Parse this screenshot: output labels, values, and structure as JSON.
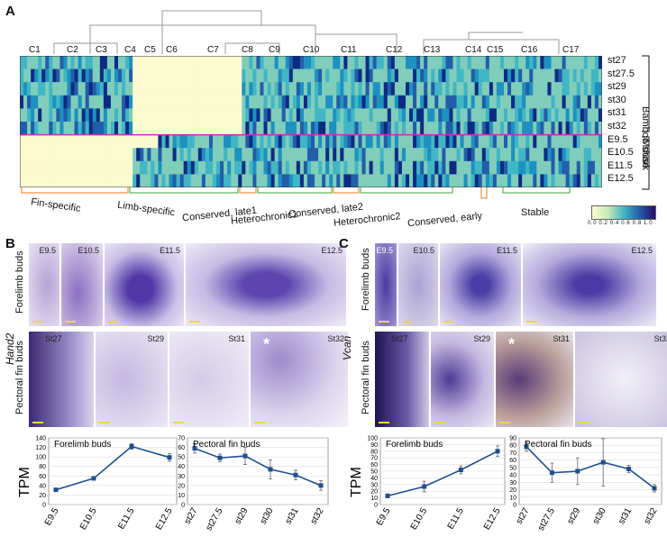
{
  "panel_a": {
    "letter": "A",
    "clusters": [
      "C1",
      "C2",
      "C3",
      "C4",
      "C5",
      "C6",
      "C7",
      "C8",
      "C9",
      "C10",
      "C11",
      "C12",
      "C13",
      "C14",
      "C15",
      "C16",
      "C17"
    ],
    "shark_stages": [
      "st27",
      "st27.5",
      "st29",
      "st30",
      "st31",
      "st32"
    ],
    "mouse_stages": [
      "E9.5",
      "E10.5",
      "E11.5",
      "E12.5"
    ],
    "species_shark": "Bamboo shark",
    "species_mouse": "Mouse",
    "categories": [
      "Fin-specific",
      "Limb-specific",
      "Conserved, late1",
      "Heterochronic1",
      "Conserved, late2",
      "Heterochronic2",
      "Conserved, early",
      "Stable"
    ],
    "colorbar_ticks": "0.0 0.2 0.4 0.6 0.8 1.0",
    "colors": {
      "low": "#fbfbd0",
      "mid": "#41b6c4",
      "high": "#2c0a6b",
      "bracket_orange": "#f07a1e",
      "bracket_green": "#3aa63a"
    }
  },
  "panel_b": {
    "letter": "B",
    "gene": "Hand2",
    "row1_label": "Forelimb buds",
    "row2_label": "Pectoral fin buds",
    "row1_stages": [
      "E9.5",
      "E10.5",
      "E11.5",
      "E12.5"
    ],
    "row2_stages": [
      "St27",
      "St29",
      "St31",
      "St32"
    ],
    "star": "*"
  },
  "panel_c": {
    "letter": "C",
    "gene": "Vcan",
    "row1_label": "Forelimb buds",
    "row2_label": "Pectoral fin buds",
    "row1_stages": [
      "E9.5",
      "E10.5",
      "E11.5",
      "E12.5"
    ],
    "row2_stages": [
      "St27",
      "St29",
      "St31",
      "St32"
    ],
    "star": "*"
  },
  "chart_data": [
    {
      "type": "line",
      "title": "Forelimb buds",
      "ylabel": "TPM",
      "categories": [
        "E9.5",
        "E10.5",
        "E11.5",
        "E12.5"
      ],
      "series": [
        {
          "values": [
            31,
            55,
            122,
            99
          ],
          "err": [
            3,
            3,
            6,
            8
          ]
        }
      ],
      "ylim": [
        0,
        140
      ],
      "yticks": [
        0,
        20,
        40,
        60,
        80,
        100,
        120,
        140
      ]
    },
    {
      "type": "line",
      "title": "Pectoral fin buds",
      "ylabel": "",
      "categories": [
        "st27",
        "st27.5",
        "st29",
        "st30",
        "st31",
        "st32"
      ],
      "series": [
        {
          "values": [
            59,
            49,
            51,
            37,
            31,
            20
          ],
          "err": [
            5,
            4,
            9,
            10,
            5,
            5
          ]
        }
      ],
      "ylim": [
        0,
        70
      ],
      "yticks": [
        0,
        10,
        20,
        30,
        40,
        50,
        60,
        70
      ]
    },
    {
      "type": "line",
      "title": "Forelimb buds",
      "ylabel": "TPM",
      "categories": [
        "E9.5",
        "E10.5",
        "E11.5",
        "E12.5"
      ],
      "series": [
        {
          "values": [
            13,
            27,
            52,
            80
          ],
          "err": [
            3,
            8,
            6,
            8
          ]
        }
      ],
      "ylim": [
        0,
        100
      ],
      "yticks": [
        0,
        10,
        20,
        30,
        40,
        50,
        60,
        70,
        80,
        90,
        100
      ]
    },
    {
      "type": "line",
      "title": "Pectoral fin buds",
      "ylabel": "",
      "categories": [
        "st27",
        "st27.5",
        "st29",
        "st30",
        "st31",
        "st32"
      ],
      "series": [
        {
          "values": [
            78,
            43,
            45,
            57,
            48,
            22
          ],
          "err": [
            6,
            13,
            18,
            32,
            5,
            5
          ]
        }
      ],
      "ylim": [
        0,
        90
      ],
      "yticks": [
        0,
        10,
        20,
        30,
        40,
        50,
        60,
        70,
        80,
        90
      ]
    }
  ]
}
